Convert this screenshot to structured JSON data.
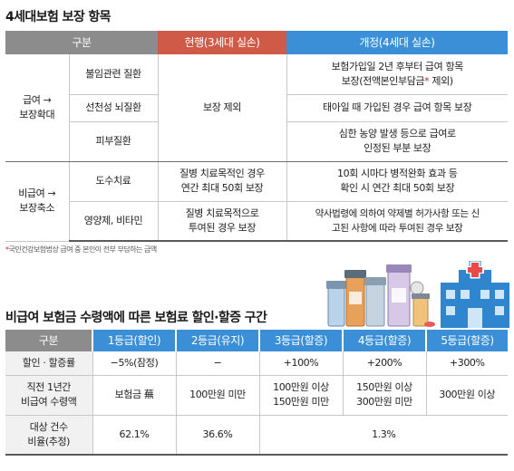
{
  "table1": {
    "title": "4세대보험 보장 항목",
    "headers": {
      "category": "구분",
      "current": "현행(3세대 실손)",
      "revised": "개정(4세대 실손)"
    },
    "group_covered": "급여 →\n보장확대",
    "group_noncovered": "비급여 →\n보장축소",
    "rows": [
      {
        "item": "불임관련 질환",
        "revised": "보험가입일 2년 후부터 급여 항목\n보장(전액본인부담금"
      },
      {
        "item": "선천성 뇌질환",
        "revised": "태아일 때 가입된 경우 급여 항목 보장"
      },
      {
        "item": "피부질환",
        "revised": "심한 농양 발생 등으로 급여로\n인정된 부분 보장"
      },
      {
        "item": "도수치료",
        "current": "질병 치료목적인 경우\n연간 최대 50회 보장",
        "revised": "10회 시마다 병적완화 효과 등\n확인 시 연간 최대 50회 보장"
      },
      {
        "item": "영양제, 비타민",
        "current": "질병 치료목적으로\n투여된 경우 보장",
        "revised": "약사법령에 의하여 약제별 허가사항 또는 신\n고된 사항에 따라 투여된 경우 보장"
      }
    ],
    "current_merged": "보장 제외",
    "revised_suffix": " 제외)",
    "asterisk": "*",
    "footnote": "국민건강보험법상 급여 중 본인이 전부 부담하는 금액"
  },
  "table2": {
    "title": "비급여 보험금 수령액에 따른 보험료 할인·할증 구간",
    "headers": [
      "구분",
      "1등급(할인)",
      "2등급(유지)",
      "3등급(할증)",
      "4등급(할증)",
      "5등급(할증)"
    ],
    "rows": [
      {
        "label": "할인 · 할증률",
        "cells": [
          "−5%(잠정)",
          "−",
          "+100%",
          "+200%",
          "+300%"
        ]
      },
      {
        "label": "직전 1년간\n비급여 수령액",
        "cells": [
          "보험금 蕪",
          "100만원 미만",
          "100만원 이상\n150만원 미만",
          "150만원 이상\n300만원 미만",
          "300만원 이상"
        ]
      },
      {
        "label": "대상 건수\n비율(추정)",
        "cells": [
          "62.1%",
          "36.6%",
          "1.3%"
        ]
      }
    ]
  },
  "colors": {
    "header_gray": "#8c8c8c",
    "header_red": "#d05a48",
    "header_blue": "#3a8fd6",
    "asterisk_red": "#d02020",
    "hospital_blue": "#2f86cf"
  },
  "icons": [
    "pill-bottles-icon",
    "hospital-building-icon"
  ]
}
